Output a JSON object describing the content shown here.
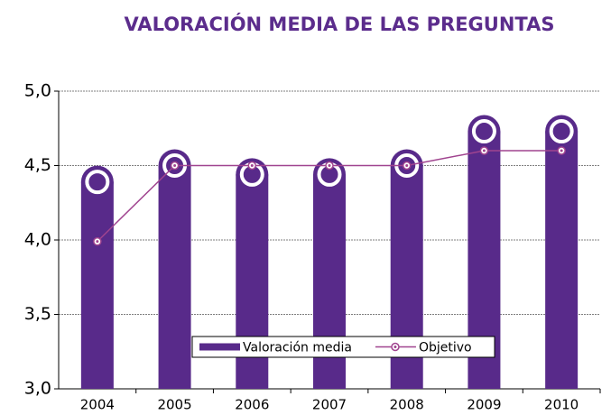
{
  "chart_data": {
    "type": "bar_line",
    "title": "VALORACIÓN MEDIA DE LAS PREGUNTAS",
    "categories": [
      "2004",
      "2005",
      "2006",
      "2007",
      "2008",
      "2009",
      "2010"
    ],
    "series": [
      {
        "name": "Valoración media",
        "type": "bar",
        "color": "#582a8a",
        "values": [
          4.39,
          4.5,
          4.44,
          4.44,
          4.5,
          4.73,
          4.73
        ]
      },
      {
        "name": "Objetivo",
        "type": "line",
        "color": "#a0448f",
        "values": [
          3.99,
          4.5,
          4.5,
          4.5,
          4.5,
          4.6,
          4.6
        ]
      }
    ],
    "ylim": [
      3,
      5
    ],
    "yticks": [
      {
        "value": 3,
        "label": "3,0"
      },
      {
        "value": 3.5,
        "label": "3,5"
      },
      {
        "value": 4,
        "label": "4,0"
      },
      {
        "value": 4.5,
        "label": "4,5"
      },
      {
        "value": 5,
        "label": "5,0"
      }
    ],
    "grid": true,
    "legend": "bottom"
  }
}
